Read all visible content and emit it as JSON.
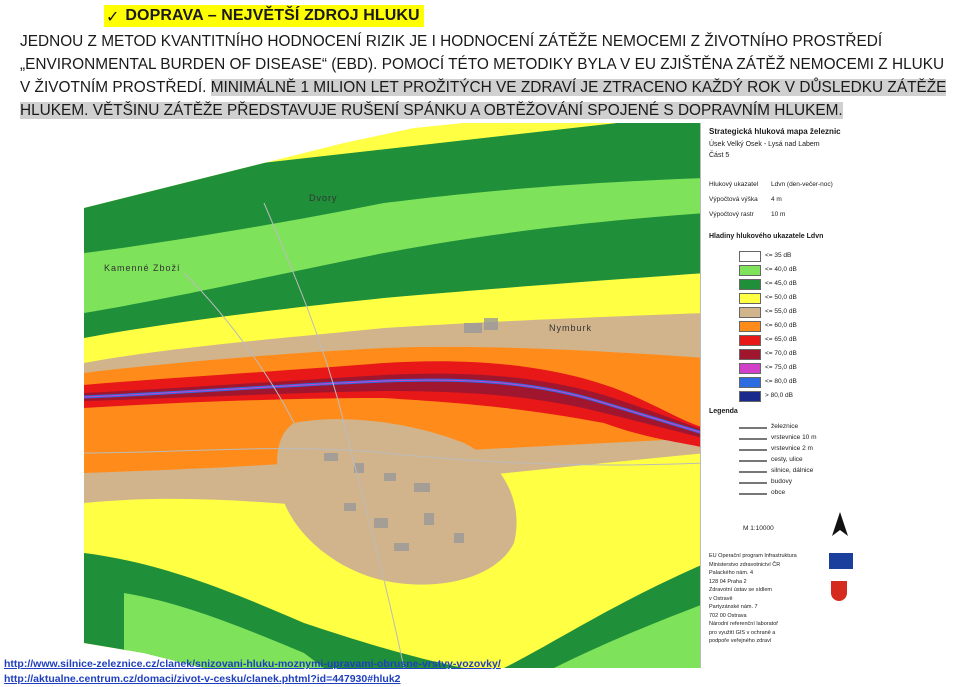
{
  "heading": {
    "icon": "checkmark-icon",
    "title": "DOPRAVA – NEJVĚTŠÍ ZDROJ HLUKU"
  },
  "paragraph": {
    "plain": "JEDNOU Z METOD KVANTITNÍHO HODNOCENÍ RIZIK JE I HODNOCENÍ ZÁTĚŽE NEMOCEMI Z ŽIVOTNÍHO PROSTŘEDÍ „ENVIRONMENTAL BURDEN OF DISEASE“ (EBD). POMOCÍ TÉTO METODIKY BYLA V EU ZJIŠTĚNA ZÁTĚŽ NEMOCEMI Z HLUKU V ŽIVOTNÍM PROSTŘEDÍ. ",
    "highlighted": "MINIMÁLNĚ 1 MILION LET PROŽITÝCH VE ZDRAVÍ JE ZTRACENO KAŽDÝ ROK V DŮSLEDKU ZÁTĚŽE HLUKEM. VĚTŠINU ZÁTĚŽE PŘEDSTAVUJE RUŠENÍ SPÁNKU A OBTĚŽOVÁNÍ SPOJENÉ S DOPRAVNÍM HLUKEM."
  },
  "map": {
    "place_labels": [
      "Dvory",
      "Kamenné Zboží",
      "Nymburk"
    ]
  },
  "legend": {
    "title_line1": "Strategická hluková mapa železnic",
    "title_line2": "Úsek Velký Osek - Lysá nad Labem",
    "title_line3": "Část 5",
    "indicator_label": "Hlukový ukazatel",
    "indicator_value": "Ldvn (den-večer-noc)",
    "height_label": "Výpočtová výška",
    "height_value": "4 m",
    "grid_label": "Výpočtový rastr",
    "grid_value": "10 m",
    "levels_title": "Hladiny hlukového ukazatele Ldvn",
    "levels": [
      {
        "label": "<= 35 dB",
        "color": "#ffffff"
      },
      {
        "label": "<= 40,0 dB",
        "color": "#7ee35a"
      },
      {
        "label": "<= 45,0 dB",
        "color": "#1f8f3a"
      },
      {
        "label": "<= 50,0 dB",
        "color": "#ffff44"
      },
      {
        "label": "<= 55,0 dB",
        "color": "#d2b48c"
      },
      {
        "label": "<= 60,0 dB",
        "color": "#ff8c1a"
      },
      {
        "label": "<= 65,0 dB",
        "color": "#e81818"
      },
      {
        "label": "<= 70,0 dB",
        "color": "#a0162e"
      },
      {
        "label": "<= 75,0 dB",
        "color": "#d040c8"
      },
      {
        "label": "<= 80,0 dB",
        "color": "#2d6be0"
      },
      {
        "label": "> 80,0 dB",
        "color": "#1a2a8c"
      }
    ],
    "legend_title": "Legenda",
    "items": [
      "železnice",
      "vrstevnice 10 m",
      "vrstevnice 2 m",
      "cesty, ulice",
      "silnice, dálnice",
      "budovy",
      "obce"
    ],
    "scale": "M 1:10000",
    "credits": [
      "EU Operační program Infrastruktura",
      "Ministerstvo zdravotnictví ČR",
      "Palackého nám. 4",
      "128 04 Praha 2",
      "Zdravotní ústav se sídlem",
      "v Ostravě",
      "Partyzánské nám. 7",
      "702 00 Ostrava",
      "Národní referenční laboratoř",
      "pro využití GIS v ochraně a",
      "podpoře veřejného zdraví"
    ]
  },
  "links": [
    "http://www.silnice-zeleznice.cz/clanek/snizovani-hluku-moznymi-upravami-obrusne-vrstvy-vozovky/",
    "http://aktualne.centrum.cz/domaci/zivot-v-cesku/clanek.phtml?id=447930#hluk2"
  ]
}
